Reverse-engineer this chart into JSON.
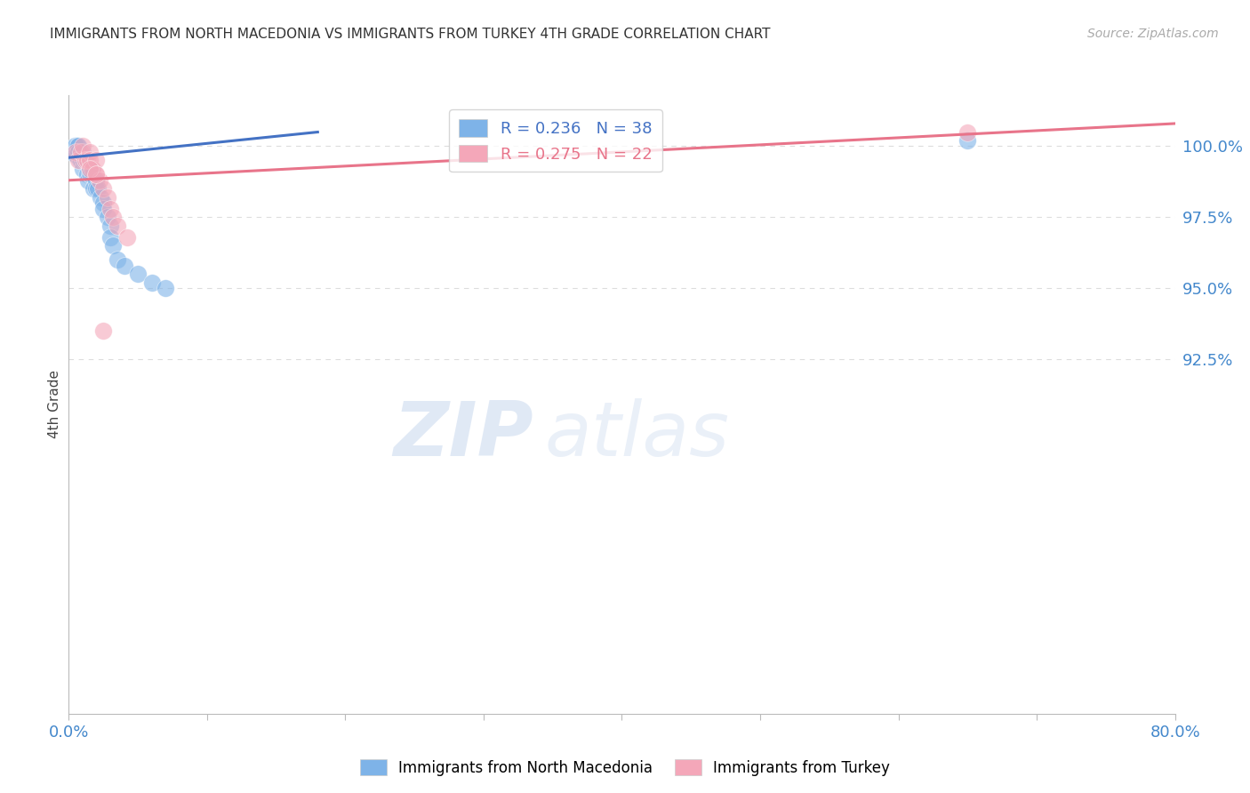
{
  "title": "IMMIGRANTS FROM NORTH MACEDONIA VS IMMIGRANTS FROM TURKEY 4TH GRADE CORRELATION CHART",
  "source": "Source: ZipAtlas.com",
  "ylabel": "4th Grade",
  "xlim": [
    0.0,
    80.0
  ],
  "ylim": [
    80.0,
    101.8
  ],
  "yticks": [
    92.5,
    95.0,
    97.5,
    100.0
  ],
  "ytick_labels": [
    "92.5%",
    "95.0%",
    "97.5%",
    "100.0%"
  ],
  "xticks": [
    0.0,
    10.0,
    20.0,
    30.0,
    40.0,
    50.0,
    60.0,
    70.0,
    80.0
  ],
  "xtick_labels": [
    "0.0%",
    "",
    "",
    "",
    "",
    "",
    "",
    "",
    "80.0%"
  ],
  "blue_R": 0.236,
  "blue_N": 38,
  "pink_R": 0.275,
  "pink_N": 22,
  "blue_color": "#7EB3E8",
  "pink_color": "#F4A7B9",
  "blue_line_color": "#4472C4",
  "pink_line_color": "#E8748A",
  "axis_color": "#BBBBBB",
  "grid_color": "#DDDDDD",
  "tick_color": "#4488CC",
  "watermark_zip": "ZIP",
  "watermark_atlas": "atlas",
  "blue_x": [
    0.2,
    0.3,
    0.4,
    0.5,
    0.5,
    0.6,
    0.7,
    0.7,
    0.8,
    0.9,
    1.0,
    1.0,
    1.0,
    1.1,
    1.2,
    1.3,
    1.4,
    1.5,
    1.5,
    1.6,
    1.7,
    1.8,
    2.0,
    2.0,
    2.1,
    2.3,
    2.5,
    2.5,
    2.8,
    3.0,
    3.0,
    3.2,
    3.5,
    4.0,
    5.0,
    6.0,
    7.0,
    65.0
  ],
  "blue_y": [
    99.8,
    99.9,
    100.0,
    100.0,
    99.7,
    100.0,
    100.0,
    99.8,
    99.5,
    99.5,
    99.8,
    99.5,
    99.2,
    99.5,
    99.5,
    99.0,
    98.8,
    99.2,
    99.0,
    99.0,
    99.0,
    98.5,
    98.8,
    98.5,
    98.5,
    98.2,
    98.0,
    97.8,
    97.5,
    97.2,
    96.8,
    96.5,
    96.0,
    95.8,
    95.5,
    95.2,
    95.0,
    100.2
  ],
  "pink_x": [
    0.5,
    0.7,
    0.9,
    1.0,
    1.2,
    1.3,
    1.5,
    1.5,
    1.7,
    2.0,
    2.0,
    2.2,
    2.5,
    2.8,
    3.0,
    3.2,
    3.5,
    4.2,
    1.5,
    2.0,
    2.5,
    65.0
  ],
  "pink_y": [
    99.8,
    99.5,
    99.8,
    100.0,
    99.5,
    99.5,
    99.8,
    99.5,
    99.2,
    99.5,
    99.0,
    98.8,
    98.5,
    98.2,
    97.8,
    97.5,
    97.2,
    96.8,
    99.2,
    99.0,
    93.5,
    100.5
  ],
  "blue_trend_x0": 0.0,
  "blue_trend_y0": 99.6,
  "blue_trend_x1": 18.0,
  "blue_trend_y1": 100.5,
  "pink_trend_x0": 0.0,
  "pink_trend_y0": 98.8,
  "pink_trend_x1": 80.0,
  "pink_trend_y1": 100.8,
  "legend_label_blue": "Immigrants from North Macedonia",
  "legend_label_pink": "Immigrants from Turkey",
  "bg_color": "#FFFFFF"
}
